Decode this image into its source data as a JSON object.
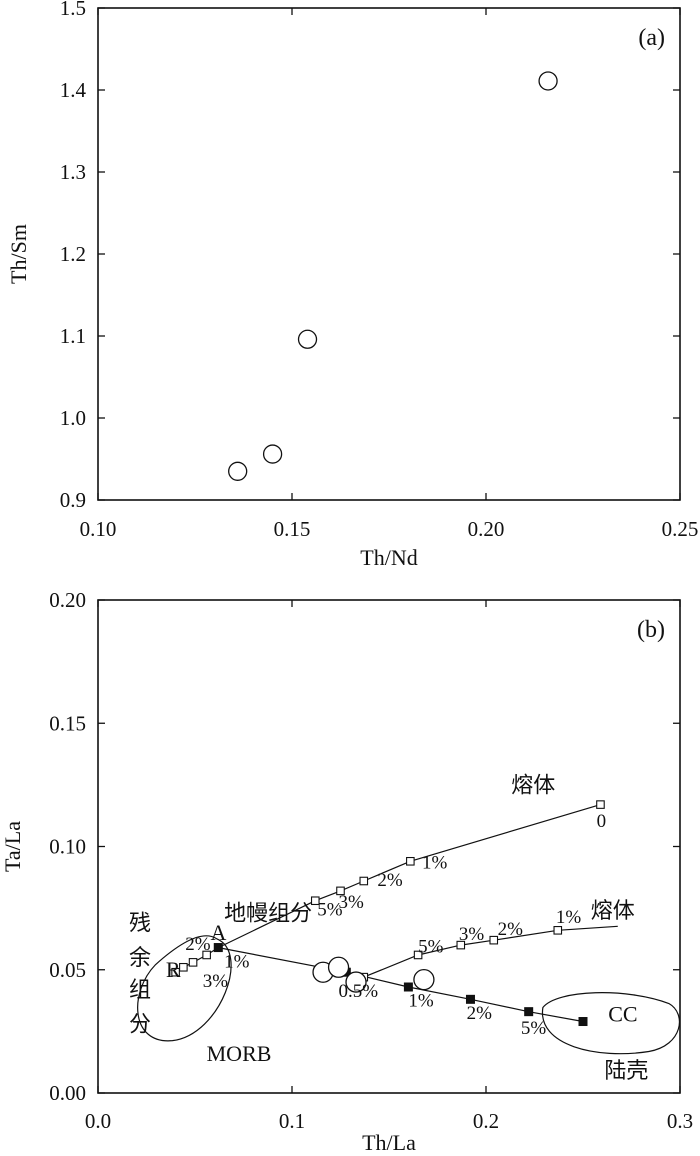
{
  "chart_data": [
    {
      "type": "scatter",
      "panel_label": "(a)",
      "xlabel": "Th/Nd",
      "ylabel": "Th/Sm",
      "xlim": [
        0.1,
        0.25
      ],
      "ylim": [
        0.9,
        1.5
      ],
      "x_ticks": [
        "0.10",
        "0.15",
        "0.20",
        "0.25"
      ],
      "y_ticks": [
        "0.9",
        "1.0",
        "1.1",
        "1.2",
        "1.3",
        "1.4",
        "1.5"
      ],
      "grid": false,
      "points": [
        {
          "x": 0.136,
          "y": 0.935
        },
        {
          "x": 0.145,
          "y": 0.956
        },
        {
          "x": 0.154,
          "y": 1.096
        },
        {
          "x": 0.216,
          "y": 1.411
        }
      ]
    },
    {
      "type": "scatter",
      "panel_label": "(b)",
      "xlabel": "Th/La",
      "ylabel": "Ta/La",
      "xlim": [
        0.0,
        0.3
      ],
      "ylim": [
        0.0,
        0.2
      ],
      "x_ticks": [
        "0.0",
        "0.1",
        "0.2",
        "0.3"
      ],
      "y_ticks": [
        "0.00",
        "0.05",
        "0.10",
        "0.15",
        "0.20"
      ],
      "grid": false,
      "samples": [
        {
          "x": 0.116,
          "y": 0.049
        },
        {
          "x": 0.124,
          "y": 0.051
        },
        {
          "x": 0.133,
          "y": 0.045
        },
        {
          "x": 0.168,
          "y": 0.046
        }
      ],
      "series": [
        {
          "marker": "open-square",
          "points": [
            {
              "x": 0.04,
              "y": 0.049
            },
            {
              "x": 0.044,
              "y": 0.051
            },
            {
              "x": 0.049,
              "y": 0.053
            },
            {
              "x": 0.056,
              "y": 0.056
            },
            {
              "x": 0.062,
              "y": 0.059
            },
            {
              "x": 0.112,
              "y": 0.078
            },
            {
              "x": 0.125,
              "y": 0.082
            },
            {
              "x": 0.137,
              "y": 0.086
            },
            {
              "x": 0.161,
              "y": 0.094
            },
            {
              "x": 0.259,
              "y": 0.117
            }
          ]
        },
        {
          "marker": "filled-square",
          "points": [
            {
              "x": 0.062,
              "y": 0.059
            },
            {
              "x": 0.128,
              "y": 0.049
            },
            {
              "x": 0.16,
              "y": 0.043
            },
            {
              "x": 0.192,
              "y": 0.038
            },
            {
              "x": 0.222,
              "y": 0.033
            },
            {
              "x": 0.25,
              "y": 0.029
            }
          ]
        },
        {
          "marker": "open-square",
          "points": [
            {
              "x": 0.137,
              "y": 0.047
            },
            {
              "x": 0.165,
              "y": 0.056
            },
            {
              "x": 0.187,
              "y": 0.06
            },
            {
              "x": 0.204,
              "y": 0.062
            },
            {
              "x": 0.237,
              "y": 0.066
            }
          ]
        }
      ],
      "annotations": [
        {
          "text": "熔体",
          "x": 0.213,
          "y": 0.122
        },
        {
          "text": "0",
          "x": 0.257,
          "y": 0.108
        },
        {
          "text": "1%",
          "x": 0.167,
          "y": 0.091
        },
        {
          "text": "2%",
          "x": 0.144,
          "y": 0.084
        },
        {
          "text": "3%",
          "x": 0.124,
          "y": 0.075
        },
        {
          "text": "5%",
          "x": 0.113,
          "y": 0.072
        },
        {
          "text": "地幔组分",
          "x": 0.065,
          "y": 0.07
        },
        {
          "text": "A",
          "x": 0.058,
          "y": 0.062
        },
        {
          "text": "熔体",
          "x": 0.254,
          "y": 0.071
        },
        {
          "text": "1%",
          "x": 0.236,
          "y": 0.069
        },
        {
          "text": "2%",
          "x": 0.206,
          "y": 0.064
        },
        {
          "text": "3%",
          "x": 0.186,
          "y": 0.062
        },
        {
          "text": "5%",
          "x": 0.165,
          "y": 0.057
        },
        {
          "text": "残",
          "x": 0.016,
          "y": 0.066
        },
        {
          "text": "余",
          "x": 0.016,
          "y": 0.052
        },
        {
          "text": "组",
          "x": 0.016,
          "y": 0.039
        },
        {
          "text": "分",
          "x": 0.016,
          "y": 0.025
        },
        {
          "text": "2%",
          "x": 0.045,
          "y": 0.058
        },
        {
          "text": "R",
          "x": 0.035,
          "y": 0.047
        },
        {
          "text": "1%",
          "x": 0.065,
          "y": 0.051
        },
        {
          "text": "3%",
          "x": 0.054,
          "y": 0.043
        },
        {
          "text": "MORB",
          "x": 0.056,
          "y": 0.013
        },
        {
          "text": "0.5%",
          "x": 0.124,
          "y": 0.039
        },
        {
          "text": "1%",
          "x": 0.16,
          "y": 0.035
        },
        {
          "text": "2%",
          "x": 0.19,
          "y": 0.03
        },
        {
          "text": "5%",
          "x": 0.218,
          "y": 0.024
        },
        {
          "text": "CC",
          "x": 0.263,
          "y": 0.029
        },
        {
          "text": "陆壳",
          "x": 0.261,
          "y": 0.006
        }
      ]
    }
  ]
}
